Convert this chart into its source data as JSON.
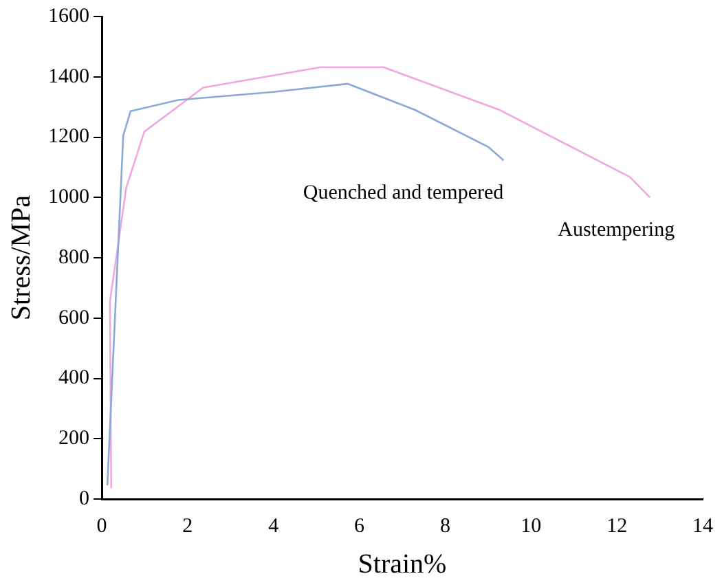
{
  "chart_data": {
    "type": "line",
    "xlabel": "Strain%",
    "ylabel": "Stress/MPa",
    "xlim": [
      0,
      14
    ],
    "xticks": [
      0,
      2,
      4,
      6,
      8,
      10,
      12,
      14
    ],
    "ylim": [
      0,
      1600
    ],
    "yticks": [
      0,
      200,
      400,
      600,
      800,
      1000,
      1200,
      1400,
      1600
    ],
    "grid": false,
    "legend": false,
    "marker": "none",
    "series": [
      {
        "name": "Quenched and tempered",
        "color": "#8aa9d6",
        "x": [
          0.13,
          0.5,
          0.67,
          1.78,
          4.0,
          5.73,
          7.3,
          9.0,
          9.36
        ],
        "values": [
          45,
          1205,
          1286,
          1323,
          1350,
          1377,
          1290,
          1168,
          1123
        ]
      },
      {
        "name": "Austempering",
        "color": "#f0a8e0",
        "x": [
          0.22,
          0.19,
          0.57,
          0.99,
          2.36,
          5.1,
          6.56,
          9.27,
          12.3,
          12.77
        ],
        "values": [
          36,
          655,
          1032,
          1218,
          1364,
          1432,
          1432,
          1290,
          1068,
          1000
        ]
      }
    ]
  }
}
